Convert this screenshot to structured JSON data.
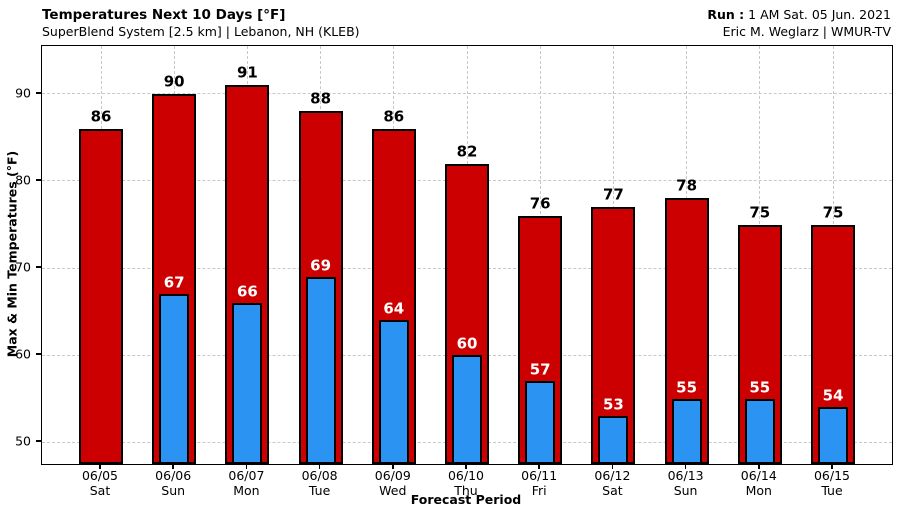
{
  "header": {
    "title": "Temperatures Next 10 Days [°F]",
    "subtitle": "SuperBlend System [2.5 km] | Lebanon, NH (KLEB)",
    "run_label": "Run :",
    "run_value": "1 AM Sat. 05 Jun. 2021",
    "credit": "Eric M. Weglarz | WMUR-TV"
  },
  "chart_data": {
    "type": "bar",
    "title": "Temperatures Next 10 Days [°F]",
    "subtitle": "SuperBlend System [2.5 km] | Lebanon, NH (KLEB)",
    "xlabel": "Forecast Period",
    "ylabel": "Max & Min Temperatures (°F)",
    "ylim": [
      47.5,
      95.5
    ],
    "yticks": [
      50,
      60,
      70,
      80,
      90
    ],
    "grid": "dashed-both-axes",
    "legend_position": "none",
    "categories": [
      "06/05",
      "06/06",
      "06/07",
      "06/08",
      "06/09",
      "06/10",
      "06/11",
      "06/12",
      "06/13",
      "06/14",
      "06/15"
    ],
    "weekdays": [
      "Sat",
      "Sun",
      "Mon",
      "Tue",
      "Wed",
      "Thu",
      "Fri",
      "Sat",
      "Sun",
      "Mon",
      "Tue"
    ],
    "series": [
      {
        "name": "Max Temperature",
        "values": [
          86,
          90,
          91,
          88,
          86,
          82,
          76,
          77,
          78,
          75,
          75
        ]
      },
      {
        "name": "Min Temperature",
        "values": [
          null,
          67,
          66,
          69,
          64,
          60,
          57,
          53,
          55,
          55,
          54
        ]
      }
    ]
  },
  "colors": {
    "max_bar": "#cc0000",
    "min_bar": "#2b93f2",
    "bar_outline": "#000000",
    "max_label": "#000000",
    "min_label": "#ffffff",
    "grid": "#c8c8c8",
    "frame": "#000000",
    "background": "#ffffff"
  }
}
